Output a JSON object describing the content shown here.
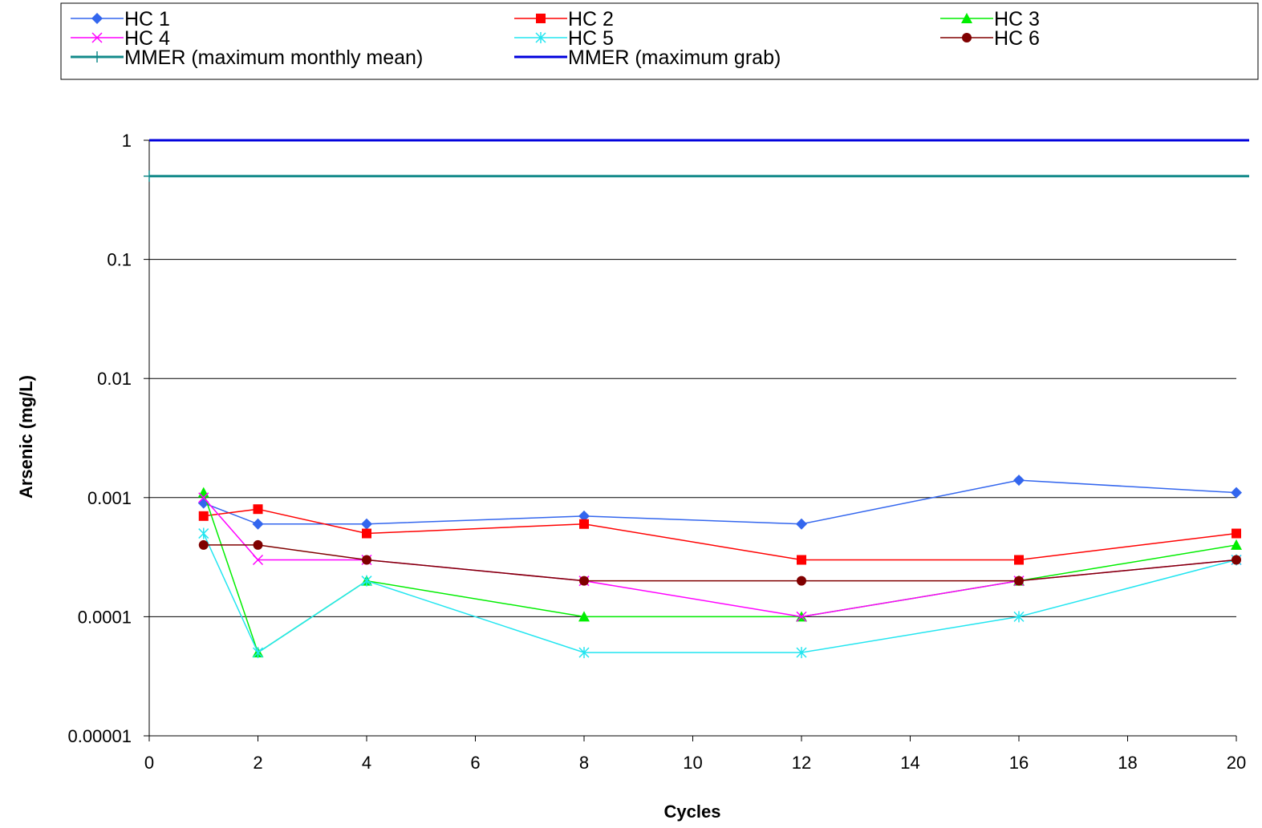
{
  "chart_data": {
    "type": "line",
    "title": "",
    "xlabel": "Cycles",
    "ylabel": "Arsenic (mg/L)",
    "y_scale": "log",
    "xlim": [
      0,
      20
    ],
    "ylim": [
      1e-05,
      1
    ],
    "x_ticks": [
      "0",
      "2",
      "4",
      "6",
      "8",
      "10",
      "12",
      "14",
      "16",
      "18",
      "20"
    ],
    "y_ticks": [
      "1",
      "0.1",
      "0.01",
      "0.001",
      "0.0001",
      "0.00001"
    ],
    "grid": "horizontal major gridlines",
    "legend_position": "top",
    "x": [
      1,
      2,
      4,
      8,
      12,
      16,
      20
    ],
    "series": [
      {
        "name": "HC 1",
        "color": "#3366ee",
        "marker": "diamond",
        "values": [
          0.0009,
          0.0006,
          0.0006,
          0.0007,
          0.0006,
          0.0014,
          0.0011
        ]
      },
      {
        "name": "HC 2",
        "color": "#ff0000",
        "marker": "square",
        "values": [
          0.0007,
          0.0008,
          0.0005,
          0.0006,
          0.0003,
          0.0003,
          0.0005
        ]
      },
      {
        "name": "HC 3",
        "color": "#00ee00",
        "marker": "triangle",
        "values": [
          0.0011,
          5e-05,
          0.0002,
          0.0001,
          0.0001,
          0.0002,
          0.0004
        ]
      },
      {
        "name": "HC 4",
        "color": "#ff00ff",
        "marker": "x",
        "values": [
          0.001,
          0.0003,
          0.0003,
          0.0002,
          0.0001,
          0.0002,
          0.0003
        ]
      },
      {
        "name": "HC 5",
        "color": "#22e5f0",
        "marker": "asterisk",
        "values": [
          0.0005,
          5e-05,
          0.0002,
          5e-05,
          5e-05,
          0.0001,
          0.0003
        ]
      },
      {
        "name": "HC 6",
        "color": "#800000",
        "marker": "circle",
        "values": [
          0.0004,
          0.0004,
          0.0003,
          0.0002,
          0.0002,
          0.0002,
          0.0003
        ]
      }
    ],
    "reference_lines": [
      {
        "name": "MMER (maximum monthly mean)",
        "color": "#138a8a",
        "marker": "plus",
        "value": 0.5
      },
      {
        "name": "MMER (maximum grab)",
        "color": "#0000dd",
        "marker": "dash",
        "value": 1
      }
    ]
  }
}
